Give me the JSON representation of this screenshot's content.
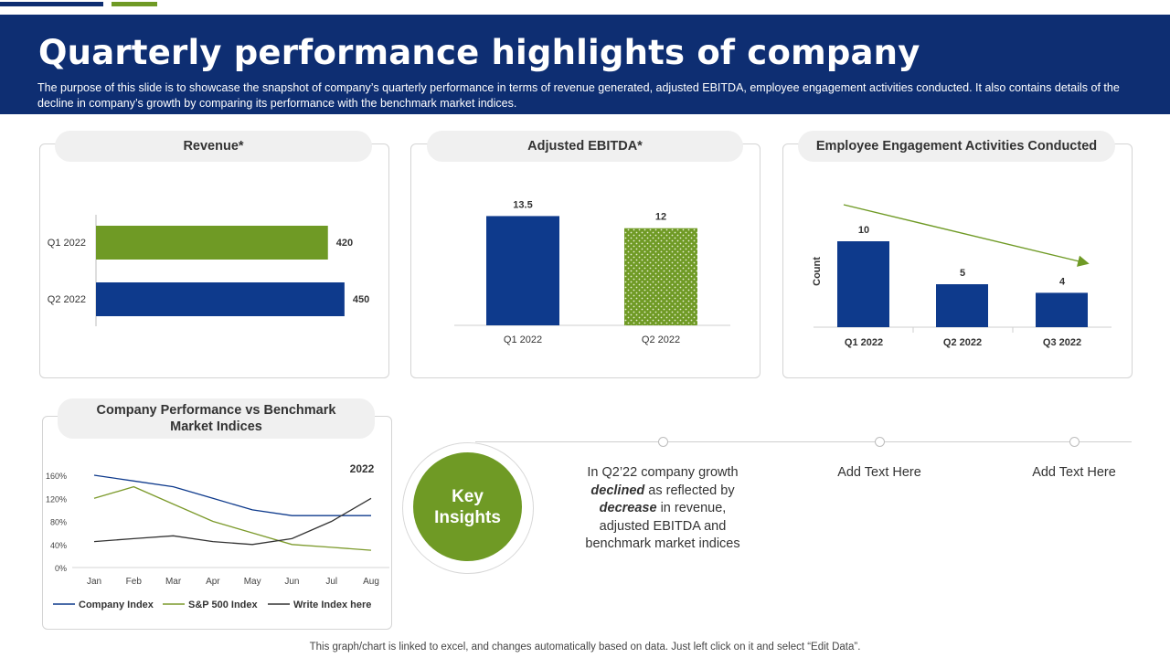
{
  "page": {
    "title": "Quarterly performance highlights of company",
    "subtitle": "The purpose of this slide is to showcase the snapshot of company’s quarterly performance in terms of revenue generated, adjusted EBITDA, employee engagement activities conducted. It also contains details of the decline in company’s growth by comparing its performance with the benchmark market indices.",
    "footer": "This graph/chart is linked to excel, and changes automatically based on data. Just left click on it and select “Edit Data”."
  },
  "colors": {
    "navy": "#0e2e72",
    "bar_blue": "#0e3a8c",
    "green": "#6f9a25",
    "olive": "#7c9a2b",
    "dark": "#333333"
  },
  "cards": {
    "revenue": {
      "title": "Revenue*"
    },
    "ebitda": {
      "title": "Adjusted EBITDA*"
    },
    "engagement": {
      "title": "Employee Engagement Activities Conducted"
    },
    "benchmark": {
      "title_line1": "Company Performance vs Benchmark",
      "title_line2": "Market Indices"
    }
  },
  "insights": {
    "circle_line1": "Key",
    "circle_line2": "Insights",
    "main": {
      "line1": "In Q2’22 company growth",
      "declined": "declined",
      "line2_rest": " as reflected by",
      "decrease": "decrease",
      "line3_rest": " in revenue,",
      "line4": "adjusted EBITDA and",
      "line5": "benchmark market indices"
    },
    "placeholder1": "Add Text Here",
    "placeholder2": "Add Text Here"
  },
  "chart_data": [
    {
      "type": "bar",
      "orientation": "horizontal",
      "title": "Revenue*",
      "categories": [
        "Q1 2022",
        "Q2 2022"
      ],
      "values": [
        420,
        450
      ],
      "labels": [
        "420",
        "450"
      ],
      "xlim": [
        0,
        480
      ]
    },
    {
      "type": "bar",
      "title": "Adjusted EBITDA*",
      "categories": [
        "Q1 2022",
        "Q2 2022"
      ],
      "values": [
        13.5,
        12
      ],
      "labels": [
        "13.5",
        "12"
      ],
      "ylim": [
        0,
        14
      ]
    },
    {
      "type": "bar",
      "title": "Employee Engagement Activities Conducted",
      "ylabel": "Count",
      "categories": [
        "Q1 2022",
        "Q2 2022",
        "Q3 2022"
      ],
      "values": [
        10,
        5,
        4
      ],
      "labels": [
        "10",
        "5",
        "4"
      ],
      "ylim": [
        0,
        11
      ],
      "annotation": "downward trend arrow"
    },
    {
      "type": "line",
      "title": "Company Performance vs Benchmark Market Indices",
      "annotation": "2022",
      "x": [
        "Jan",
        "Feb",
        "Mar",
        "Apr",
        "May",
        "Jun",
        "Jul",
        "Aug"
      ],
      "yticks": [
        "0%",
        "40%",
        "80%",
        "120%",
        "160%"
      ],
      "ylim": [
        0,
        160
      ],
      "series": [
        {
          "name": "Company Index",
          "color": "#0e3a8c",
          "values": [
            160,
            150,
            140,
            120,
            100,
            90,
            90,
            90
          ]
        },
        {
          "name": "S&P 500 Index",
          "color": "#7c9a2b",
          "values": [
            120,
            140,
            110,
            80,
            60,
            40,
            35,
            30
          ]
        },
        {
          "name": "Write Index here",
          "color": "#333333",
          "values": [
            45,
            50,
            55,
            45,
            40,
            50,
            80,
            120
          ]
        }
      ],
      "legend": "bottom"
    }
  ]
}
